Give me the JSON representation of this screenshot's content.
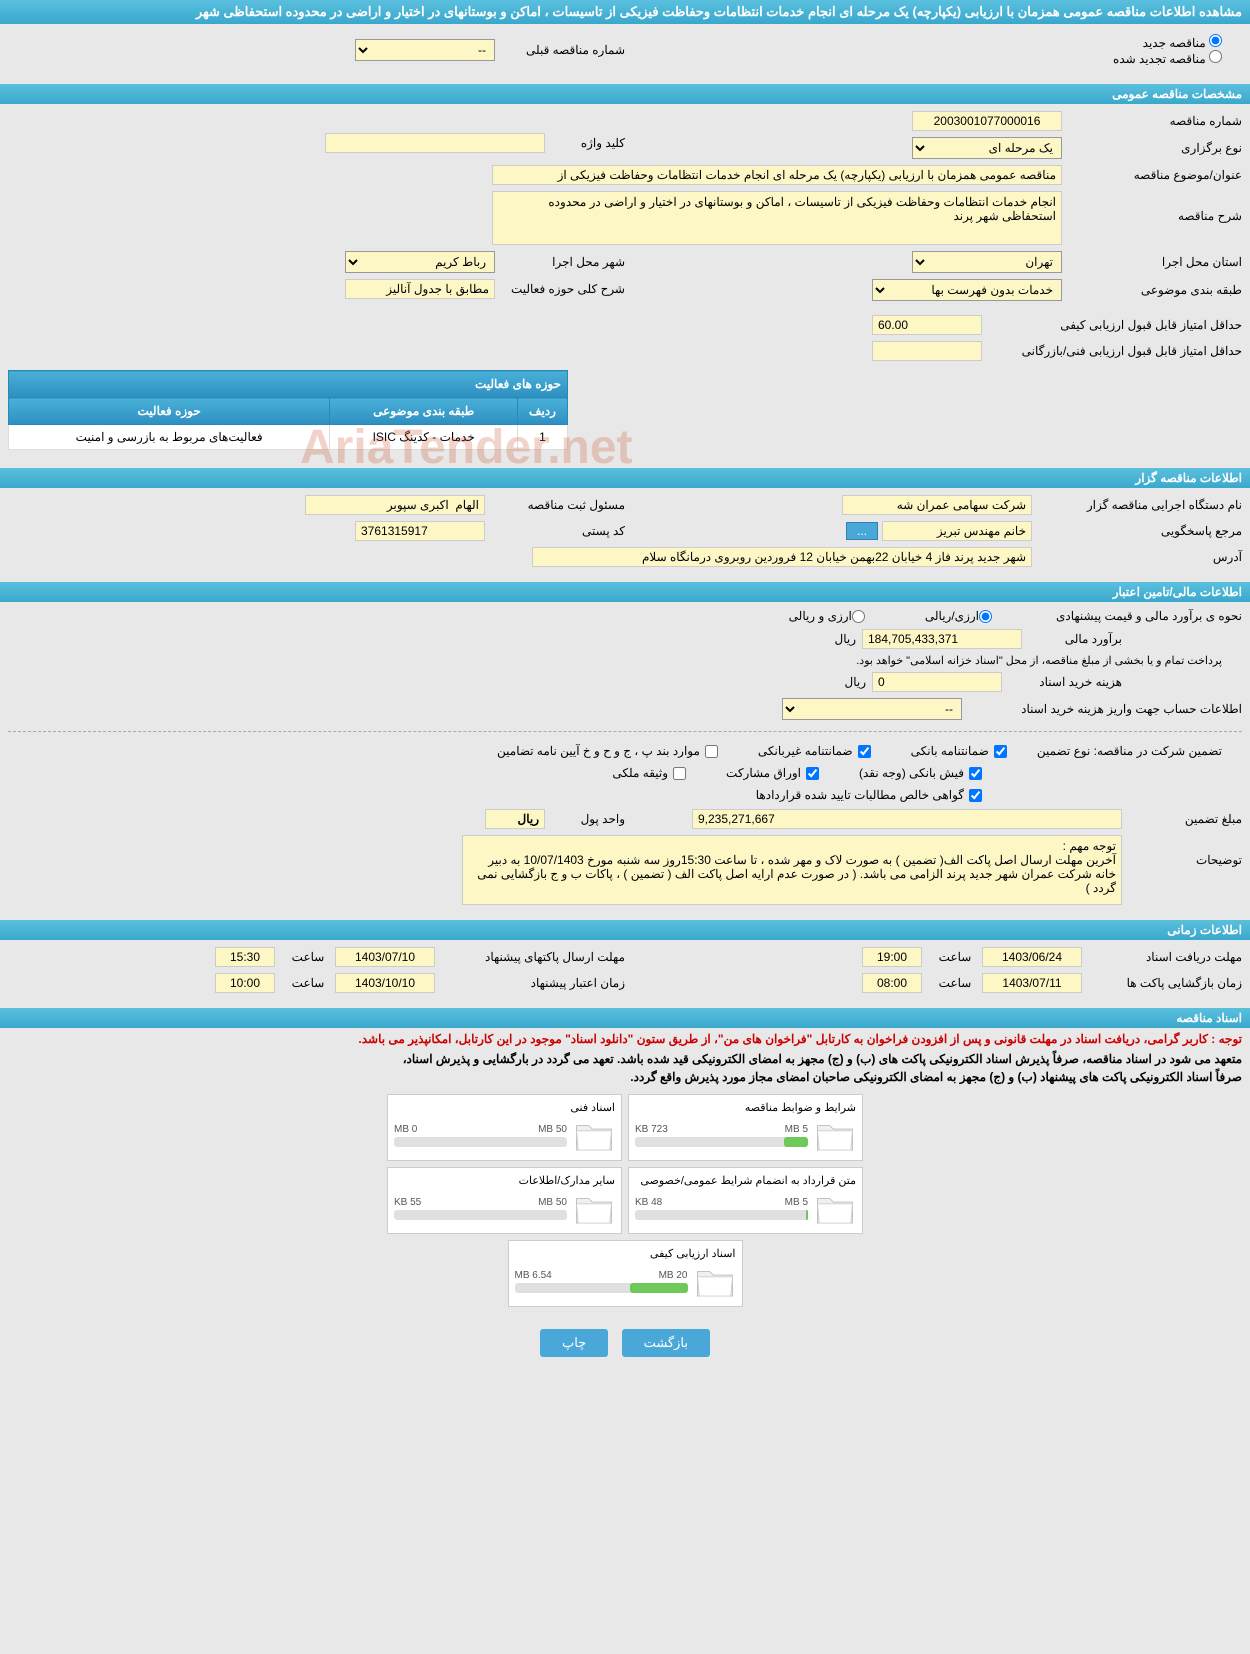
{
  "page_title": "مشاهده اطلاعات مناقصه عمومی همزمان با ارزیابی (یکپارچه) یک مرحله ای انجام خدمات انتظامات وحفاظت فیزیکی از تاسیسات ، اماکن و بوستانهای در اختیار و اراضی در محدوده استحفاظی شهر",
  "tender_type": {
    "new_label": "مناقصه جدید",
    "renewed_label": "مناقصه تجدید شده",
    "prev_number_label": "شماره مناقصه قبلی",
    "prev_number": "--"
  },
  "sections": {
    "general": "مشخصات مناقصه عمومی",
    "organizer": "اطلاعات مناقصه گزار",
    "financial": "اطلاعات مالی/تامین اعتبار",
    "schedule": "اطلاعات زمانی",
    "docs": "اسناد مناقصه"
  },
  "general": {
    "number_label": "شماره مناقصه",
    "number": "2003001077000016",
    "keyword_label": "کلید واژه",
    "keyword": "",
    "holding_type_label": "نوع برگزاری",
    "holding_type": "یک مرحله ای",
    "subject_label": "عنوان/موضوع مناقصه",
    "subject": "مناقصه عمومی همزمان با ارزیابی (یکپارچه) یک مرحله ای انجام خدمات انتظامات وحفاظت فیزیکی از",
    "description_label": "شرح مناقصه",
    "description": "انجام خدمات انتظامات وحفاظت فیزیکی از تاسیسات ، اماکن و بوستانهای در اختیار و اراضی در محدوده استحفاظی شهر پرند",
    "province_label": "استان محل اجرا",
    "province": "تهران",
    "city_label": "شهر محل اجرا",
    "city": "رباط کریم",
    "category_label": "طبقه بندی موضوعی",
    "category": "خدمات بدون فهرست بها",
    "activity_desc_label": "شرح کلی حوزه فعالیت",
    "activity_desc": "مطابق با جدول آنالیز",
    "min_qual_score_label": "حداقل امتیاز قابل قبول ارزیابی کیفی",
    "min_qual_score": "60.00",
    "min_tech_score_label": "حداقل امتیاز قابل قبول ارزیابی فنی/بازرگانی",
    "min_tech_score": ""
  },
  "activity_table": {
    "title": "حوزه های فعالیت",
    "headers": {
      "row": "ردیف",
      "cat": "طبقه بندی موضوعی",
      "field": "حوزه فعالیت"
    },
    "row1": {
      "n": "1",
      "cat": "خدمات - کدینگ ISIC",
      "field": "فعالیت‌های مربوط به بازرسی و امنیت"
    }
  },
  "organizer": {
    "executor_label": "نام دستگاه اجرایی مناقصه گزار",
    "executor": "شرکت سهامی عمران شه",
    "registrar_label": "مسئول ثبت مناقصه",
    "registrar": "الهام  اکبری سپوبر",
    "responder_label": "مرجع پاسخگویی",
    "responder": "خانم مهندس تبریز",
    "btn_more": "...",
    "postal_label": "کد پستی",
    "postal": "3761315917",
    "address_label": "آدرس",
    "address": "شهر جدید پرند فاز 4 خیابان 22بهمن خیابان 12 فروردین روبروی درمانگاه سلام"
  },
  "financial": {
    "estimate_method_label": "نحوه ی برآورد مالی و قیمت پیشنهادی",
    "opt_rial": "ارزی/ریالی",
    "opt_both": "ارزی و ریالی",
    "estimate_label": "برآورد مالی",
    "estimate": "184,705,433,371",
    "currency": "ریال",
    "payment_note": "پرداخت تمام و یا بخشی از مبلغ مناقصه، از محل \"اسناد خزانه اسلامی\" خواهد بود.",
    "doc_fee_label": "هزینه خرید اسناد",
    "doc_fee": "0",
    "doc_fee_currency": "ریال",
    "account_label": "اطلاعات حساب جهت واریز هزینه خرید اسناد",
    "account": "--",
    "guarantee_header": "تضمین شرکت در مناقصه:    نوع تضمین",
    "cb_bank_guarantee": "ضمانتنامه بانکی",
    "cb_nonbank_guarantee": "ضمانتنامه غیربانکی",
    "cb_items_bpjh": "موارد بند پ ، ج و ح و خ آیین نامه تضامین",
    "cb_bank_receipt": "فیش بانکی (وجه نقد)",
    "cb_bonds": "اوراق مشارکت",
    "cb_property": "وثیقه ملکی",
    "cb_net_claims": "گواهی خالص مطالبات تایید شده قراردادها",
    "guarantee_amount_label": "مبلغ تضمین",
    "guarantee_amount": "9,235,271,667",
    "unit_label": "واحد پول",
    "unit": "ریال",
    "notes_label": "توضیحات",
    "notes": "توجه مهم :\nآخرین مهلت ارسال اصل پاکت الف( تضمین ) به صورت لاک و مهر شده ، تا ساعت 15:30روز سه شنبه مورخ 10/07/1403 به دبیر خانه شرکت عمران شهر جدید پرند الزامی می باشد. ( در صورت عدم ارایه اصل پاکت الف ( تضمین ) ، پاکات ب و ج بازگشایی نمی گردد )"
  },
  "schedule": {
    "doc_receive_label": "مهلت دریافت اسناد",
    "doc_receive_date": "1403/06/24",
    "time_label": "ساعت",
    "doc_receive_time": "19:00",
    "proposal_send_label": "مهلت ارسال پاکتهای پیشنهاد",
    "proposal_send_date": "1403/07/10",
    "proposal_send_time": "15:30",
    "opening_label": "زمان بازگشایی پاکت ها",
    "opening_date": "1403/07/11",
    "opening_time": "08:00",
    "validity_label": "زمان اعتبار پیشنهاد",
    "validity_date": "1403/10/10",
    "validity_time": "10:00"
  },
  "docs": {
    "red_note": "توجه : کاربر گرامی، دریافت اسناد در مهلت قانونی و پس از افزودن فراخوان به کارتابل \"فراخوان های من\"، از طریق ستون \"دانلود اسناد\" موجود در این کارتابل، امکانپذیر می باشد.",
    "black_note1": "متعهد می شود در اسناد مناقصه، صرفاً پذیرش اسناد الکترونیکی پاکت های (ب) و (ج) مجهز به امضای الکترونیکی قید شده باشد. تعهد می گردد در بارگشایی و پذیرش اسناد،",
    "black_note2": "صرفاً اسناد الکترونیکی پاکت های پیشنهاد (ب) و (ج) مجهز به امضای الکترونیکی صاحبان امضای مجاز مورد پذیرش واقع گردد.",
    "items": [
      {
        "title": "شرایط و ضوابط مناقصه",
        "used": "723 KB",
        "total": "5 MB",
        "pct": 14
      },
      {
        "title": "اسناد فنی",
        "used": "0 MB",
        "total": "50 MB",
        "pct": 0
      },
      {
        "title": "متن قرارداد به انضمام شرایط عمومی/خصوصی",
        "used": "48 KB",
        "total": "5 MB",
        "pct": 1
      },
      {
        "title": "سایر مدارک/اطلاعات",
        "used": "55 KB",
        "total": "50 MB",
        "pct": 0
      },
      {
        "title": "اسناد ارزیابی کیفی",
        "used": "6.54 MB",
        "total": "20 MB",
        "pct": 33
      }
    ]
  },
  "buttons": {
    "back": "بازگشت",
    "print": "چاپ"
  },
  "watermark": "AriaTender.net",
  "colors": {
    "header_bg": "#5bc0de",
    "input_bg": "#fdf6c5",
    "bar_fill": "#6ec85a"
  }
}
